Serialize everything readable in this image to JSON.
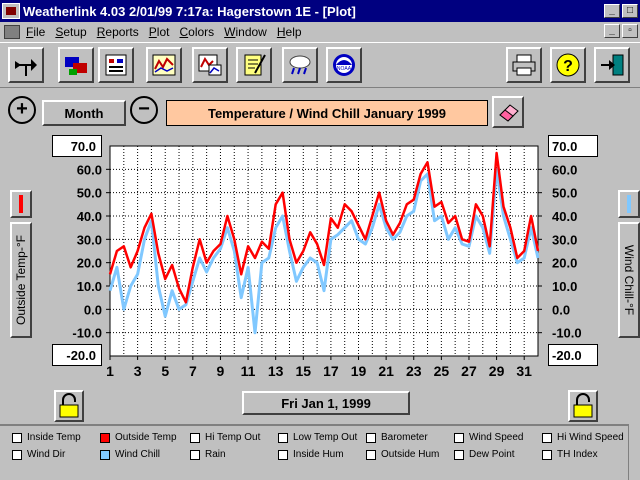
{
  "window": {
    "title": "Weatherlink 4.03   2/01/99   7:17a: Hagerstown 1E - [Plot]",
    "controls": {
      "minimize": "_",
      "maximize": "□",
      "close": "×",
      "restore": "▫"
    }
  },
  "menu": {
    "items": [
      {
        "label": "File",
        "key": "F",
        "rest": "ile"
      },
      {
        "label": "Setup",
        "key": "S",
        "rest": "etup"
      },
      {
        "label": "Reports",
        "key": "R",
        "rest": "eports"
      },
      {
        "label": "Plot",
        "key": "P",
        "rest": "lot"
      },
      {
        "label": "Colors",
        "key": "C",
        "rest": "olors"
      },
      {
        "label": "Window",
        "key": "W",
        "rest": "indow"
      },
      {
        "label": "Help",
        "key": "H",
        "rest": "elp"
      }
    ]
  },
  "toolbar": {
    "icons": [
      "wind-vane-icon",
      "modem-icon",
      "report-icon",
      "plot-icon",
      "summary-plot-icon",
      "notepad-icon",
      "rain-cloud-icon",
      "noaa-icon",
      "printer-icon",
      "help-icon",
      "exit-icon"
    ]
  },
  "controls": {
    "zoom_in": "+",
    "zoom_out": "−",
    "period": "Month",
    "date": "Fri Jan 1, 1999"
  },
  "chart_data": {
    "type": "line",
    "title": "Temperature / Wind Chill  January 1999",
    "ylabel_left": "Outside Temp-°F",
    "ylabel_right": "Wind Chill-°F",
    "ylim": [
      -20,
      70
    ],
    "y_top": "70.0",
    "y_bottom": "-20.0",
    "y_ticks": [
      60,
      50,
      40,
      30,
      20,
      10,
      0,
      -10
    ],
    "y_tick_labels": [
      "60.0",
      "50.0",
      "40.0",
      "30.0",
      "20.0",
      "10.0",
      "0.0",
      "-10.0"
    ],
    "x_labels": [
      "1",
      "3",
      "5",
      "7",
      "9",
      "11",
      "13",
      "15",
      "17",
      "19",
      "21",
      "23",
      "25",
      "27",
      "29",
      "31"
    ],
    "x_range": [
      1,
      32
    ],
    "grid": true,
    "series": [
      {
        "name": "Outside Temp",
        "color": "#ff0000",
        "x": [
          1,
          1.5,
          2,
          2.5,
          3,
          3.5,
          4,
          4.5,
          5,
          5.5,
          6,
          6.5,
          7,
          7.5,
          8,
          8.5,
          9,
          9.5,
          10,
          10.5,
          11,
          11.5,
          12,
          12.5,
          13,
          13.5,
          14,
          14.5,
          15,
          15.5,
          16,
          16.5,
          17,
          17.5,
          18,
          18.5,
          19,
          19.5,
          20,
          20.5,
          21,
          21.5,
          22,
          22.5,
          23,
          23.5,
          24,
          24.5,
          25,
          25.5,
          26,
          26.5,
          27,
          27.5,
          28,
          28.5,
          29,
          29.5,
          30,
          30.5,
          31,
          31.5,
          32
        ],
        "values": [
          15,
          25,
          27,
          18,
          25,
          35,
          41,
          24,
          13,
          19,
          9,
          3,
          18,
          30,
          20,
          25,
          28,
          40,
          30,
          15,
          27,
          22,
          29,
          26,
          45,
          50,
          30,
          20,
          25,
          33,
          28,
          19,
          39,
          35,
          45,
          42,
          36,
          30,
          40,
          50,
          38,
          32,
          37,
          45,
          47,
          58,
          63,
          44,
          46,
          37,
          40,
          30,
          29,
          45,
          40,
          27,
          67,
          44,
          35,
          22,
          25,
          40,
          25
        ]
      },
      {
        "name": "Wind Chill",
        "color": "#80c8ff",
        "x": [
          1,
          1.5,
          2,
          2.5,
          3,
          3.5,
          4,
          4.5,
          5,
          5.5,
          6,
          6.5,
          7,
          7.5,
          8,
          8.5,
          9,
          9.5,
          10,
          10.5,
          11,
          11.5,
          12,
          12.5,
          13,
          13.5,
          14,
          14.5,
          15,
          15.5,
          16,
          16.5,
          17,
          17.5,
          18,
          18.5,
          19,
          19.5,
          20,
          20.5,
          21,
          21.5,
          22,
          22.5,
          23,
          23.5,
          24,
          24.5,
          25,
          25.5,
          26,
          26.5,
          27,
          27.5,
          28,
          28.5,
          29,
          29.5,
          30,
          30.5,
          31,
          31.5,
          32
        ],
        "values": [
          8,
          18,
          0,
          10,
          15,
          30,
          38,
          10,
          -3,
          8,
          0,
          2,
          12,
          22,
          16,
          22,
          26,
          35,
          25,
          5,
          18,
          -10,
          20,
          22,
          35,
          40,
          25,
          12,
          18,
          22,
          20,
          8,
          30,
          32,
          35,
          38,
          30,
          28,
          35,
          45,
          35,
          30,
          33,
          40,
          42,
          55,
          58,
          38,
          40,
          30,
          35,
          28,
          27,
          40,
          35,
          24,
          60,
          40,
          30,
          20,
          22,
          35,
          22
        ]
      }
    ]
  },
  "legend": {
    "items": [
      {
        "label": "Inside Temp",
        "checked": false,
        "color": ""
      },
      {
        "label": "Outside Temp",
        "checked": true,
        "color": "#ff0000"
      },
      {
        "label": "Hi Temp Out",
        "checked": false,
        "color": ""
      },
      {
        "label": "Low Temp Out",
        "checked": false,
        "color": ""
      },
      {
        "label": "Barometer",
        "checked": false,
        "color": ""
      },
      {
        "label": "Wind Speed",
        "checked": false,
        "color": ""
      },
      {
        "label": "Hi Wind Speed",
        "checked": false,
        "color": ""
      },
      {
        "label": "Wind Dir",
        "checked": false,
        "color": ""
      },
      {
        "label": "Wind Chill",
        "checked": true,
        "color": "#80c8ff"
      },
      {
        "label": "Rain",
        "checked": false,
        "color": ""
      },
      {
        "label": "Inside Hum",
        "checked": false,
        "color": ""
      },
      {
        "label": "Outside Hum",
        "checked": false,
        "color": ""
      },
      {
        "label": "Dew Point",
        "checked": false,
        "color": ""
      },
      {
        "label": "TH Index",
        "checked": false,
        "color": ""
      }
    ]
  }
}
